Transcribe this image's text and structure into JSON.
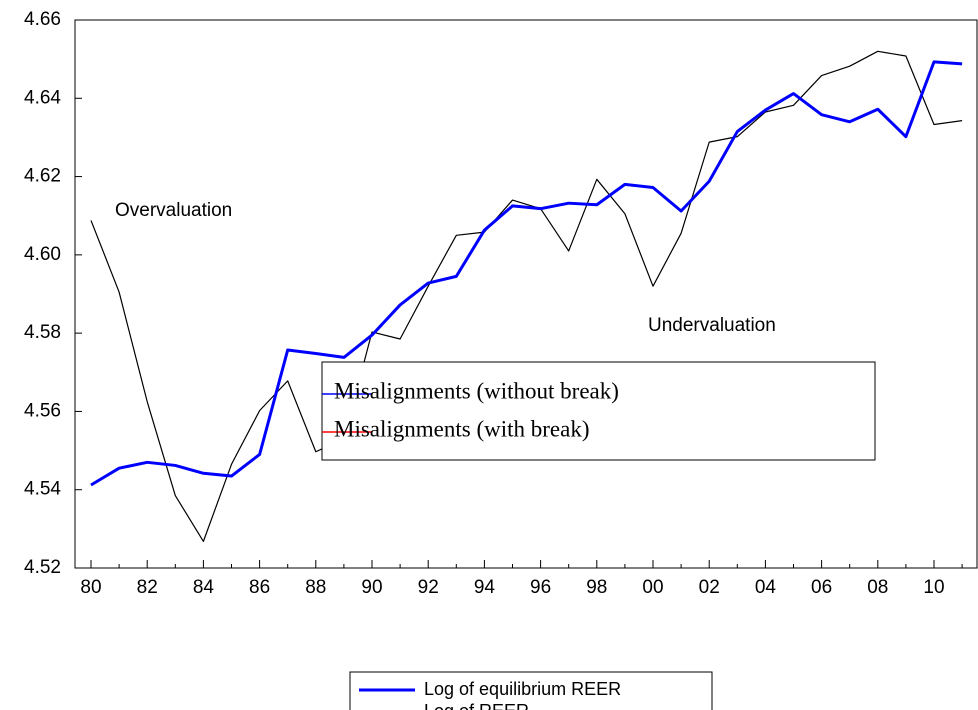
{
  "chart_data": {
    "type": "line",
    "categories": [
      "80",
      null,
      "82",
      null,
      "84",
      null,
      "86",
      null,
      "88",
      null,
      "90",
      null,
      "92",
      null,
      "94",
      null,
      "96",
      null,
      "98",
      null,
      "00",
      null,
      "02",
      null,
      "04",
      null,
      "06",
      null,
      "08",
      null,
      "10",
      null
    ],
    "series": [
      {
        "name": "Log of equilibrium REER",
        "color": "#0000ff",
        "line_width": 3,
        "values": [
          4.5412,
          4.5455,
          4.547,
          4.5462,
          4.5442,
          4.5435,
          4.549,
          4.5757,
          4.5748,
          4.5738,
          4.5795,
          4.5872,
          4.5928,
          4.5945,
          4.6063,
          4.6125,
          4.6118,
          4.6132,
          4.6128,
          4.618,
          4.6172,
          4.6112,
          4.6188,
          4.6315,
          4.637,
          4.6412,
          4.6358,
          4.634,
          4.6372,
          4.6302,
          4.6493,
          4.6488
        ]
      },
      {
        "name": "Log of REER",
        "color": "#000000",
        "line_width": 1.2,
        "values": [
          4.6088,
          4.5905,
          4.5625,
          4.5385,
          4.5268,
          4.5465,
          4.5602,
          4.5678,
          4.5497,
          4.553,
          4.5803,
          4.5785,
          4.592,
          4.605,
          4.6058,
          4.614,
          4.6118,
          4.601,
          4.6193,
          4.6105,
          4.592,
          4.6055,
          4.6288,
          4.6302,
          4.6365,
          4.6382,
          4.6458,
          4.6482,
          4.652,
          4.6508,
          4.6333,
          4.6343
        ]
      }
    ],
    "ylim": [
      4.52,
      4.66
    ],
    "yticks": [
      4.52,
      4.54,
      4.56,
      4.58,
      {
        "value": 4.6,
        "label": "4.60"
      },
      4.62,
      4.64,
      4.66
    ],
    "annotations": [
      "Overvaluation",
      "Undervaluation"
    ],
    "overlay_legend": [
      {
        "name": "Misalignments (without break)",
        "color": "#0000ff"
      },
      {
        "name": "Misalignments (with break)",
        "color": "#ff0000"
      }
    ]
  }
}
